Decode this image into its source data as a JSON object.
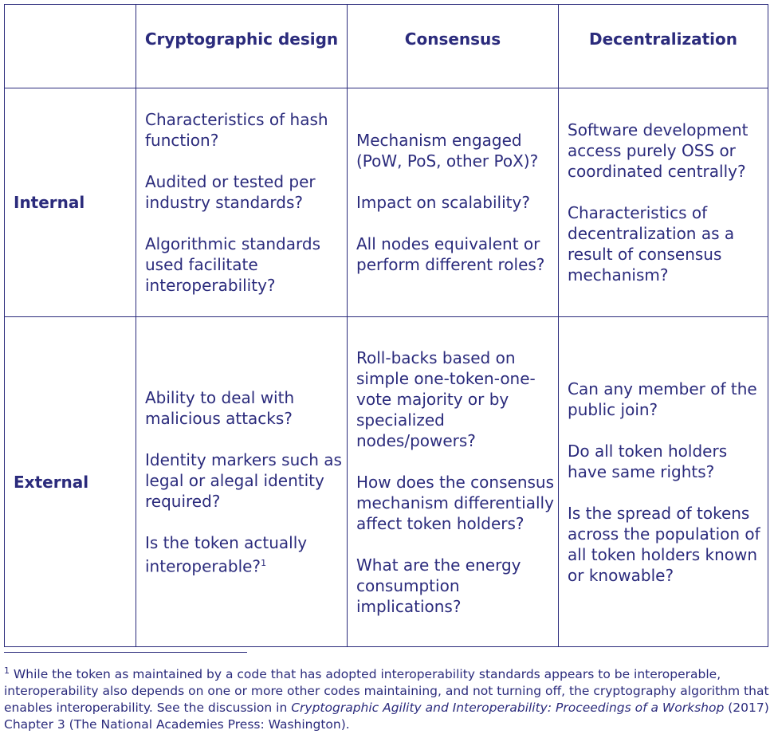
{
  "table": {
    "headers": [
      "",
      "Cryptographic design",
      "Consensus",
      "Decentralization"
    ],
    "rows": [
      {
        "label": "Internal",
        "cells": [
          [
            "Characteristics of hash function?",
            "Audited or tested per industry standards?",
            "Algorithmic standards used facilitate interoperability?"
          ],
          [
            "Mechanism engaged (PoW, PoS, other PoX)?",
            "Impact on scalability?",
            "All nodes equivalent or perform different roles?"
          ],
          [
            "Software development access purely OSS or coordinated centrally?",
            "Characteristics of decentralization as a result of consensus mechanism?"
          ]
        ]
      },
      {
        "label": "External",
        "cells": [
          [
            "Ability to deal with malicious attacks?",
            "Identity markers such as legal or alegal identity required?",
            "Is the token actually interoperable?"
          ],
          [
            "Roll-backs based on simple one-token-one-vote majority or by specialized nodes/powers?",
            "How does the consensus mechanism differentially affect token holders?",
            "What are the energy consumption implications?"
          ],
          [
            "Can any member of the public join?",
            "Do all token holders have same rights?",
            "Is the spread of tokens across the population of all token holders known or knowable?"
          ]
        ]
      }
    ],
    "footnote_marker": "1"
  },
  "footnote": {
    "marker": "1",
    "text_before": " While the token as maintained by a code that has adopted interoperability standards appears to be interoperable, interoperability also depends on one or more other codes maintaining, and not turning off, the cryptography algorithm that enables interoperability. See the discussion in ",
    "italic_title": "Cryptographic Agility and Interoperability: Proceedings of a Workshop",
    "text_after": " (2017) Chapter 3 (The National Academies Press: Washington)."
  },
  "colors": {
    "text": "#2b2b7c",
    "border": "#2b2b7c"
  }
}
